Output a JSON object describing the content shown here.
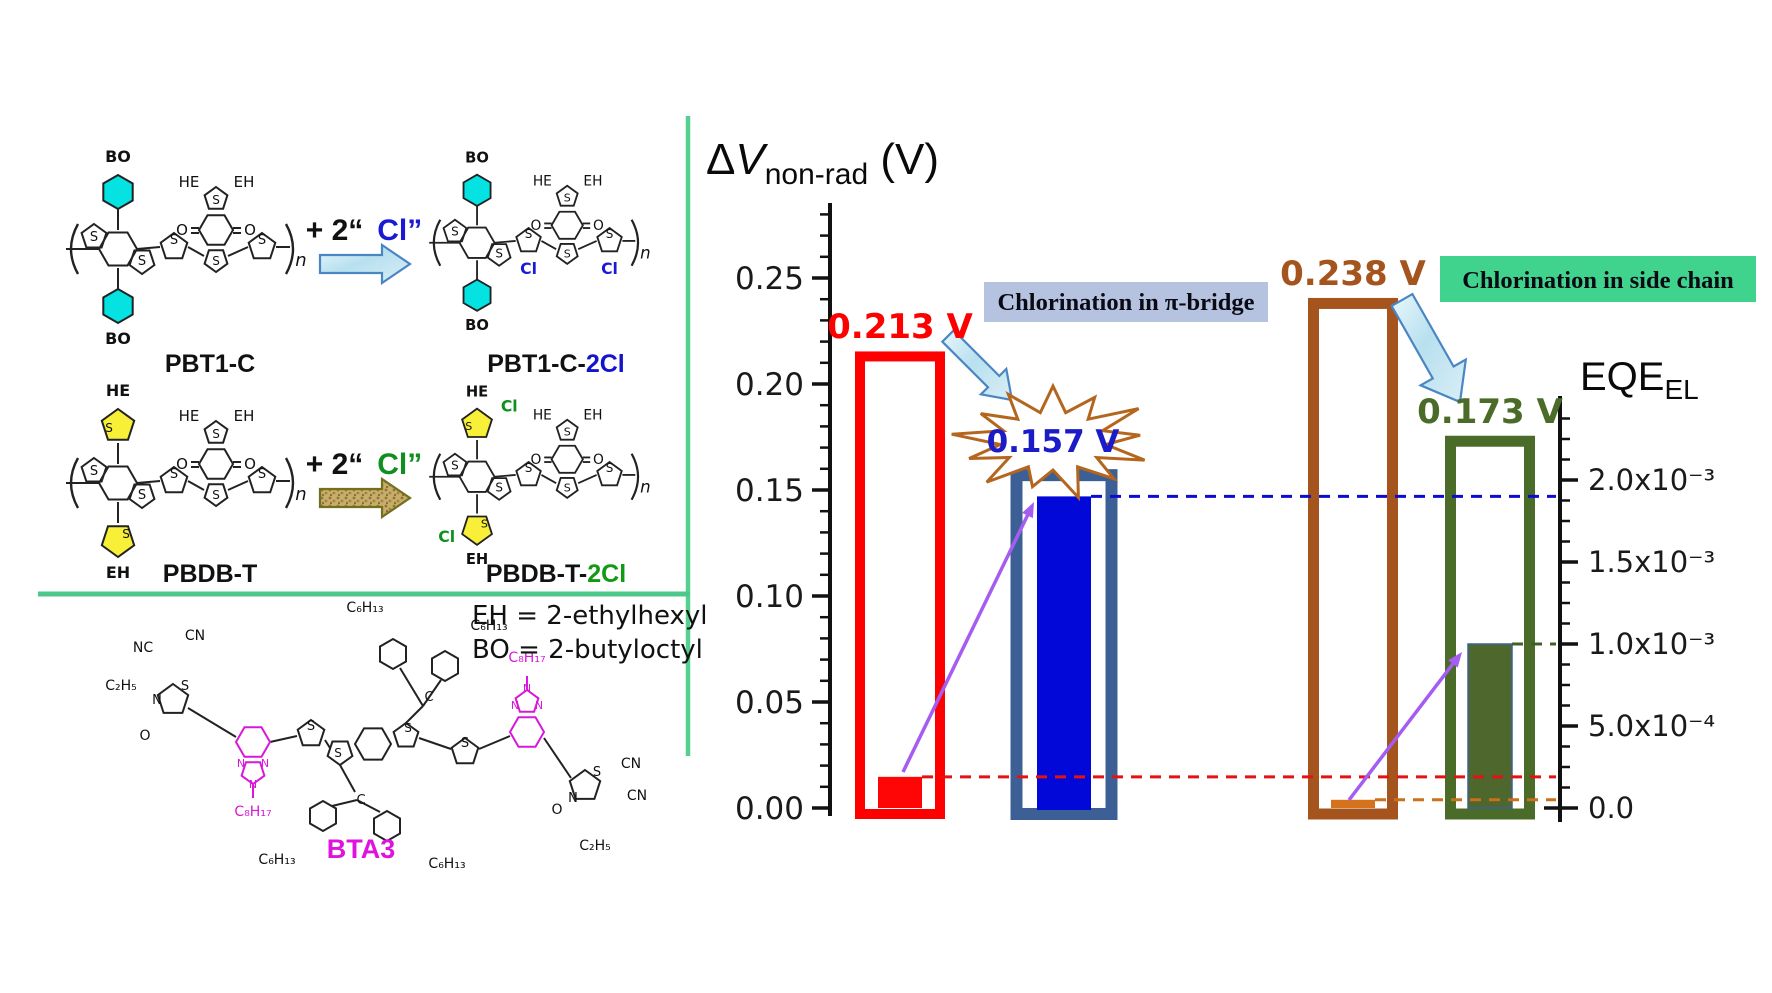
{
  "figure": {
    "divider_vertical_color": "#55d090",
    "divider_horizontal_color": "#4cc98a"
  },
  "left_panel": {
    "reaction1": {
      "reactant_label": "PBT1-C",
      "product_label_prefix": "PBT1-C-",
      "product_label_suffix": "2Cl",
      "product_suffix_color": "#1414cc",
      "reagent_prefix": "+ 2“",
      "reagent_cl": "Cl”",
      "reagent_cl_color": "#1a1ad6",
      "reactant_atoms": {
        "pendant_top": "BO",
        "pendant_bottom": "BO",
        "he": "HE",
        "eh": "EH",
        "o_left": "O",
        "o_right": "O",
        "s_top": "S",
        "s_bottom": "S",
        "s_core1": "S",
        "s_core2": "S",
        "s_b1": "S",
        "s_b2": "S",
        "n": "n"
      },
      "product_atoms": {
        "pendant_top": "BO",
        "pendant_bottom": "BO",
        "he": "HE",
        "eh": "EH",
        "o_left": "O",
        "o_right": "O",
        "s_top": "S",
        "s_bottom": "S",
        "s_core1": "S",
        "s_core2": "S",
        "s_b1": "S",
        "s_b2": "S",
        "n": "n",
        "cl1": "Cl",
        "cl2": "Cl"
      }
    },
    "reaction2": {
      "reactant_label": "PBDB-T",
      "product_label_prefix": "PBDB-T-",
      "product_label_suffix": "2Cl",
      "product_suffix_color": "#129a12",
      "reagent_prefix": "+ 2“",
      "reagent_cl": "Cl”",
      "reagent_cl_color": "#0f8f1f",
      "reactant_atoms": {
        "pendant_top": "HE",
        "pendant_bottom": "EH",
        "s_pt": "S",
        "s_pb": "S",
        "he": "HE",
        "eh": "EH",
        "o_left": "O",
        "o_right": "O",
        "s_top": "S",
        "s_bottom": "S",
        "s_core1": "S",
        "s_core2": "S",
        "s_b1": "S",
        "s_b2": "S",
        "n": "n"
      },
      "product_atoms": {
        "pendant_top": "HE",
        "pendant_bottom": "EH",
        "s_pt": "S",
        "s_pb": "S",
        "he": "HE",
        "eh": "EH",
        "o_left": "O",
        "o_right": "O",
        "s_top": "S",
        "s_bottom": "S",
        "s_core1": "S",
        "s_core2": "S",
        "s_b1": "S",
        "s_b2": "S",
        "n": "n",
        "cl_top": "Cl",
        "cl_bottom": "Cl"
      }
    },
    "bta3": {
      "name": "BTA3",
      "name_color": "#e012e0",
      "legend_eh": "EH = 2-ethylhexyl",
      "legend_bo": "BO = 2-butyloctyl",
      "atoms": {
        "nc": "NC",
        "cn_top": "CN",
        "c2h5_left": "C₂H₅",
        "o_left": "O",
        "s_left": "S",
        "n_left": "N",
        "c8h17_left": "C₈H₁₇",
        "n_l1": "N",
        "n_l2": "N",
        "n_l3": "N",
        "s_thio_left": "S",
        "s_core_left": "S",
        "s_core_right": "S",
        "c_top": "C",
        "c_bottom": "C",
        "c6h13_t1": "C₆H₁₃",
        "c6h13_t2": "C₆H₁₃",
        "c6h13_b1": "C₆H₁₃",
        "c6h13_b2": "C₆H₁₃",
        "s_thio_right": "S",
        "n_r1": "N",
        "n_r2": "N",
        "n_r3": "N",
        "c8h17_right": "C₈H₁₇",
        "s_right": "S",
        "n_right": "N",
        "o_right": "O",
        "cn_r1": "CN",
        "cn_r2": "CN",
        "c2h5_right": "C₂H₅"
      }
    }
  },
  "chart_data": {
    "type": "bar",
    "title": {
      "delta": "Δ",
      "v": "V",
      "sub": "non-rad",
      "unit": " (V)"
    },
    "left_axis": {
      "tick_labels": [
        "0.00",
        "0.05",
        "0.10",
        "0.15",
        "0.20",
        "0.25"
      ],
      "tick_values": [
        0,
        0.05,
        0.1,
        0.15,
        0.2,
        0.25
      ],
      "minor_step": 0.01,
      "range": [
        0,
        0.285
      ]
    },
    "right_axis": {
      "title": "EQE",
      "title_sub": "EL",
      "tick_labels": [
        "0.0",
        "5.0x10⁻⁴",
        "1.0x10⁻³",
        "1.5x10⁻³",
        "2.0x10⁻³"
      ],
      "tick_values": [
        0,
        0.0005,
        0.001,
        0.0015,
        0.002
      ],
      "minor_step": 0.000125,
      "range": [
        0,
        0.00253
      ]
    },
    "bars": [
      {
        "polymer": "PBT1-C",
        "delta_v": 0.213,
        "delta_v_label": "0.213 V",
        "eqe_el": 0.00019,
        "outline_color": "#fe0000",
        "fill_color": "#fe0606",
        "label_color": "#fe0000",
        "dash_color": "#e51212"
      },
      {
        "polymer": "PBT1-C-2Cl",
        "delta_v": 0.157,
        "delta_v_label": "0.157 V",
        "eqe_el": 0.0019,
        "outline_color": "#3c6095",
        "fill_color": "#0108d8",
        "label_color": "#1b1bc8",
        "dash_color": "#0c0cd0"
      },
      {
        "polymer": "PBDB-T",
        "delta_v": 0.238,
        "delta_v_label": "0.238 V",
        "eqe_el": 5e-05,
        "outline_color": "#a4541c",
        "fill_color": "#d4731c",
        "label_color": "#a4541c",
        "dash_color": "#cc6f19"
      },
      {
        "polymer": "PBDB-T-2Cl",
        "delta_v": 0.173,
        "delta_v_label": "0.173 V",
        "eqe_el": 0.001,
        "outline_color": "#4b6c28",
        "fill_color": "#4d672c",
        "label_color": "#4b6c28",
        "dash_color": "#3f6027"
      }
    ],
    "annotations": {
      "pi_bridge": "Chlorination in π-bridge",
      "pi_bridge_bg": "#b5c3e0",
      "side_chain": "Chlorination in side chain",
      "side_chain_bg": "#40d38d"
    }
  }
}
